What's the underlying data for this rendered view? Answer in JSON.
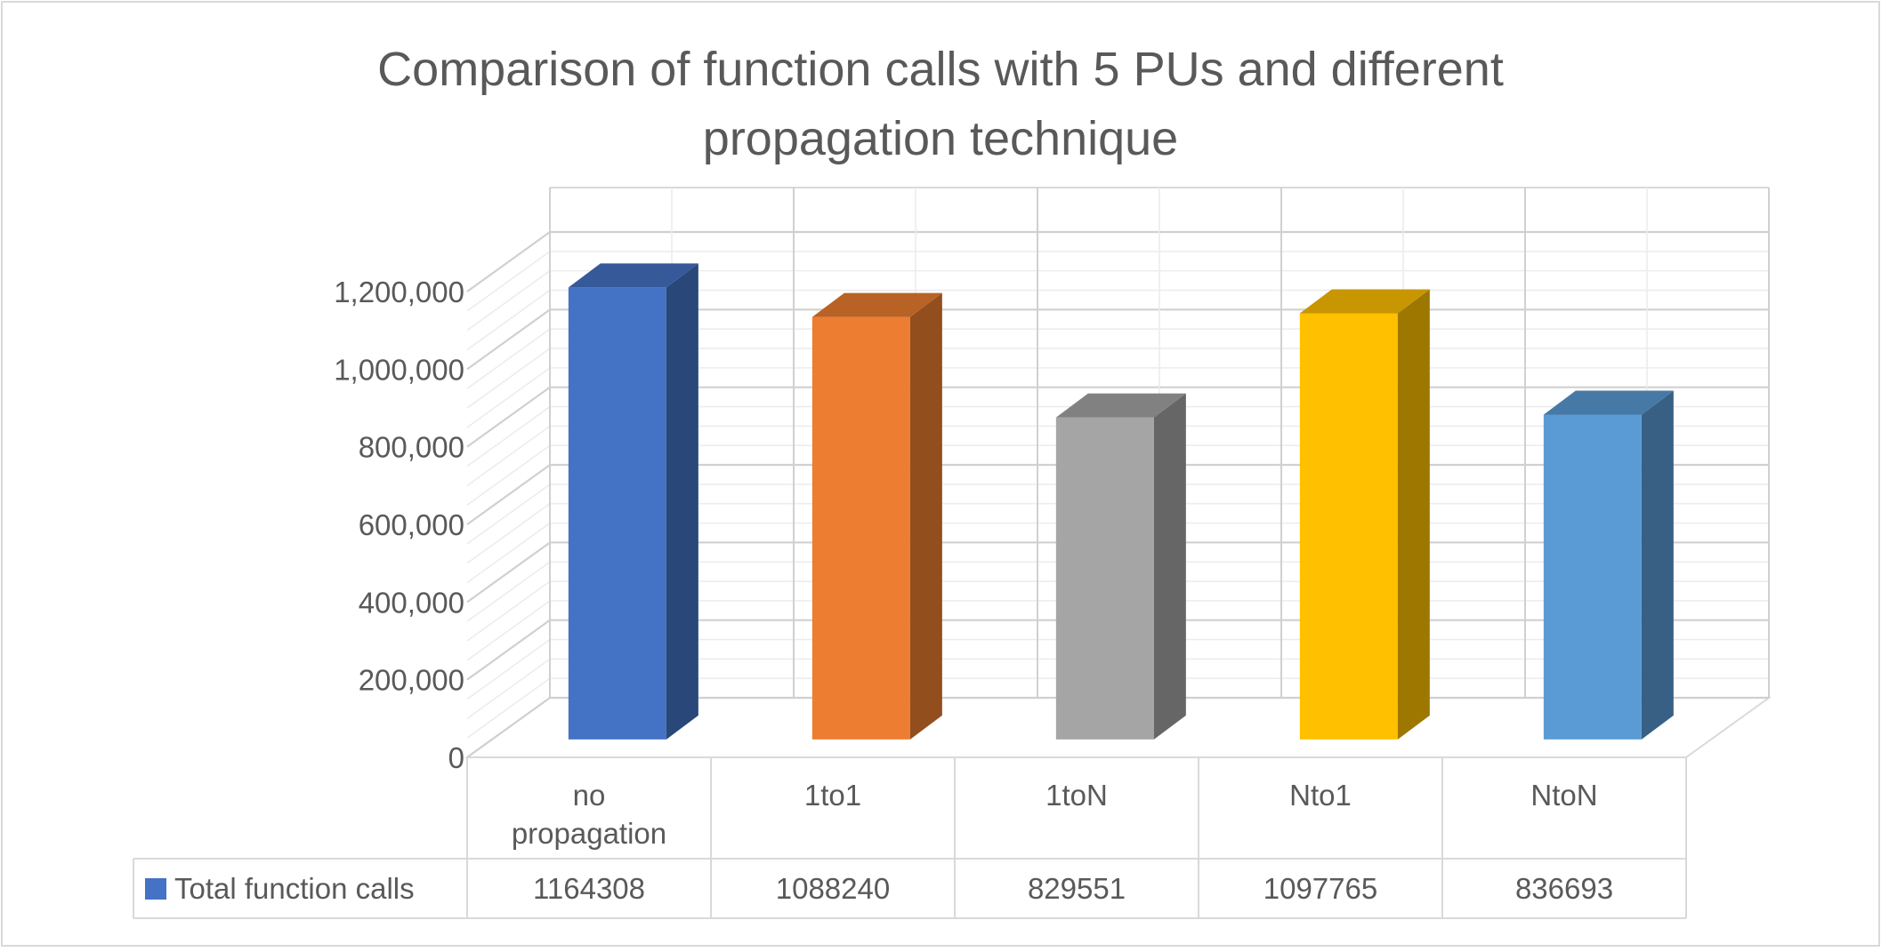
{
  "chart_data": {
    "type": "bar",
    "title_lines": [
      "Comparison of function calls with 5 PUs and different",
      "propagation technique"
    ],
    "categories": [
      [
        "no",
        "propagation"
      ],
      [
        "1to1"
      ],
      [
        "1toN"
      ],
      [
        "Nto1"
      ],
      [
        "NtoN"
      ]
    ],
    "series": [
      {
        "name": "Total function calls",
        "values": [
          1164308,
          1088240,
          829551,
          1097765,
          836693
        ],
        "value_labels": [
          "1164308",
          "1088240",
          "829551",
          "1097765",
          "836693"
        ]
      }
    ],
    "point_colors": [
      "#4472C4",
      "#ED7D31",
      "#A5A5A5",
      "#FFC000",
      "#5B9BD5"
    ],
    "ylim": [
      0,
      1200000
    ],
    "y_ticks": [
      "0",
      "200,000",
      "400,000",
      "600,000",
      "800,000",
      "1,000,000",
      "1,200,000"
    ],
    "y_tick_values": [
      0,
      200000,
      400000,
      600000,
      800000,
      1000000,
      1200000
    ],
    "legend": "data-table",
    "grid": true
  }
}
